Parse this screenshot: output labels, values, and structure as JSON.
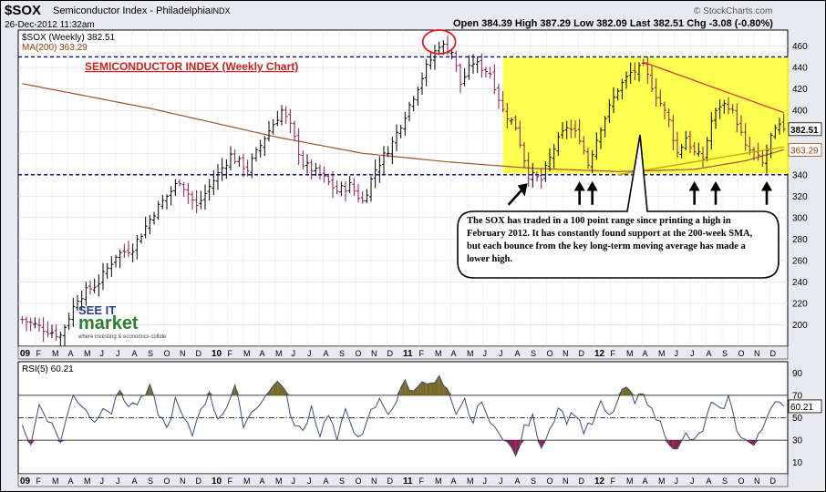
{
  "header": {
    "ticker": "$SOX",
    "index_name": "Semiconductor Index - Philadelphia",
    "exchange": "INDX",
    "datetime": "26-Dec-2012 11:32am",
    "credit": "© StockCharts.com",
    "quote": "Open 384.39   High 387.29   Low 382.09   Last 382.51   Chg -3.08 (-0.80%)"
  },
  "colors": {
    "price_bars": "#000000",
    "price_bars_down": "#8b1a4a",
    "ma_line": "#a0522d",
    "highlight": "#ffff33",
    "support": "#00008b",
    "resistance": "#e03030",
    "rsi_line": "#3b4d7a",
    "rsi_over": "#7a6a2a",
    "rsi_under": "#8b2252"
  },
  "chart_data": [
    {
      "type": "ohlc",
      "legend": {
        "series_label": "$SOX (Weekly) 382.51",
        "ma_label": "MA(200) 363.29"
      },
      "title": "SEMICONDUCTOR INDEX (Weekly Chart)",
      "y_ticks": [
        200,
        220,
        240,
        260,
        280,
        300,
        320,
        340,
        360,
        380,
        400,
        420,
        440,
        460
      ],
      "ylim": [
        180,
        475
      ],
      "x_tick_labels": [
        "09",
        "F",
        "M",
        "A",
        "M",
        "J",
        "J",
        "A",
        "S",
        "O",
        "N",
        "D",
        "10",
        "F",
        "M",
        "A",
        "M",
        "J",
        "J",
        "A",
        "S",
        "O",
        "N",
        "D",
        "11",
        "F",
        "M",
        "A",
        "M",
        "J",
        "J",
        "A",
        "S",
        "O",
        "N",
        "D",
        "12",
        "F",
        "M",
        "A",
        "M",
        "J",
        "J",
        "A",
        "S",
        "O",
        "N",
        "D"
      ],
      "year_labels": [
        "09",
        "10",
        "11",
        "12"
      ],
      "close_anchors": [
        {
          "w": 0,
          "v": 205
        },
        {
          "w": 4,
          "v": 198
        },
        {
          "w": 9,
          "v": 190
        },
        {
          "w": 13,
          "v": 225
        },
        {
          "w": 18,
          "v": 240
        },
        {
          "w": 22,
          "v": 265
        },
        {
          "w": 26,
          "v": 272
        },
        {
          "w": 31,
          "v": 305
        },
        {
          "w": 37,
          "v": 335
        },
        {
          "w": 41,
          "v": 310
        },
        {
          "w": 45,
          "v": 335
        },
        {
          "w": 49,
          "v": 358
        },
        {
          "w": 53,
          "v": 345
        },
        {
          "w": 57,
          "v": 375
        },
        {
          "w": 61,
          "v": 400
        },
        {
          "w": 63,
          "v": 385
        },
        {
          "w": 66,
          "v": 350
        },
        {
          "w": 70,
          "v": 340
        },
        {
          "w": 74,
          "v": 325
        },
        {
          "w": 77,
          "v": 330
        },
        {
          "w": 80,
          "v": 315
        },
        {
          "w": 83,
          "v": 345
        },
        {
          "w": 87,
          "v": 370
        },
        {
          "w": 91,
          "v": 405
        },
        {
          "w": 95,
          "v": 440
        },
        {
          "w": 98,
          "v": 462
        },
        {
          "w": 101,
          "v": 455
        },
        {
          "w": 103,
          "v": 425
        },
        {
          "w": 106,
          "v": 445
        },
        {
          "w": 108,
          "v": 440
        },
        {
          "w": 110,
          "v": 435
        },
        {
          "w": 113,
          "v": 400
        },
        {
          "w": 116,
          "v": 385
        },
        {
          "w": 119,
          "v": 340
        },
        {
          "w": 122,
          "v": 335
        },
        {
          "w": 125,
          "v": 365
        },
        {
          "w": 128,
          "v": 385
        },
        {
          "w": 131,
          "v": 375
        },
        {
          "w": 133,
          "v": 350
        },
        {
          "w": 136,
          "v": 385
        },
        {
          "w": 140,
          "v": 420
        },
        {
          "w": 143,
          "v": 435
        },
        {
          "w": 146,
          "v": 440
        },
        {
          "w": 149,
          "v": 415
        },
        {
          "w": 152,
          "v": 390
        },
        {
          "w": 154,
          "v": 360
        },
        {
          "w": 156,
          "v": 375
        },
        {
          "w": 158,
          "v": 360
        },
        {
          "w": 160,
          "v": 355
        },
        {
          "w": 162,
          "v": 390
        },
        {
          "w": 164,
          "v": 405
        },
        {
          "w": 166,
          "v": 405
        },
        {
          "w": 168,
          "v": 390
        },
        {
          "w": 170,
          "v": 365
        },
        {
          "w": 172,
          "v": 360
        },
        {
          "w": 174,
          "v": 350
        },
        {
          "w": 176,
          "v": 375
        },
        {
          "w": 178,
          "v": 385
        },
        {
          "w": 179,
          "v": 382.51
        }
      ],
      "ma200_anchors": [
        {
          "w": 0,
          "v": 425
        },
        {
          "w": 30,
          "v": 402
        },
        {
          "w": 60,
          "v": 375
        },
        {
          "w": 80,
          "v": 360
        },
        {
          "w": 100,
          "v": 352
        },
        {
          "w": 120,
          "v": 346
        },
        {
          "w": 140,
          "v": 343
        },
        {
          "w": 158,
          "v": 345
        },
        {
          "w": 170,
          "v": 353
        },
        {
          "w": 179,
          "v": 363.29
        }
      ],
      "right_labels": {
        "last": "382.51",
        "ma": "363.29"
      },
      "support_level": 340,
      "resistance_level": 450,
      "highlight_range": {
        "w_start": 113,
        "w_end": 179,
        "y_low": 341,
        "y_high": 450
      },
      "downtrend_line": [
        {
          "w": 146,
          "v": 445
        },
        {
          "w": 179,
          "v": 398
        }
      ],
      "uptrend_line": [
        {
          "w": 140,
          "v": 340
        },
        {
          "w": 179,
          "v": 366
        }
      ],
      "arrows_w": [
        119,
        131,
        134,
        158,
        163,
        175
      ],
      "circled_peak_w": 98,
      "annotation": "The SOX has traded in a 100 point range since printing a high in February 2012. It has constantly found support at the 200-week SMA, but each bounce from the key long-term moving average has made a lower high.",
      "watermark": {
        "line1": "SEE IT",
        "line2": "market",
        "line3": "where investing & economics collide"
      }
    },
    {
      "type": "line",
      "label": "RSI(5) 60.21",
      "y_ticks": [
        10,
        30,
        50,
        70,
        90
      ],
      "ylim": [
        0,
        100
      ],
      "ref_levels": [
        30,
        50,
        70
      ],
      "last_value": "60.21",
      "anchors": [
        {
          "w": 0,
          "v": 45
        },
        {
          "w": 2,
          "v": 25
        },
        {
          "w": 4,
          "v": 62
        },
        {
          "w": 6,
          "v": 50
        },
        {
          "w": 9,
          "v": 30
        },
        {
          "w": 12,
          "v": 70
        },
        {
          "w": 15,
          "v": 58
        },
        {
          "w": 17,
          "v": 45
        },
        {
          "w": 19,
          "v": 62
        },
        {
          "w": 21,
          "v": 55
        },
        {
          "w": 23,
          "v": 75
        },
        {
          "w": 25,
          "v": 60
        },
        {
          "w": 28,
          "v": 65
        },
        {
          "w": 30,
          "v": 76
        },
        {
          "w": 32,
          "v": 55
        },
        {
          "w": 34,
          "v": 40
        },
        {
          "w": 36,
          "v": 65
        },
        {
          "w": 38,
          "v": 48
        },
        {
          "w": 40,
          "v": 35
        },
        {
          "w": 42,
          "v": 60
        },
        {
          "w": 44,
          "v": 70
        },
        {
          "w": 46,
          "v": 50
        },
        {
          "w": 48,
          "v": 60
        },
        {
          "w": 50,
          "v": 76
        },
        {
          "w": 52,
          "v": 45
        },
        {
          "w": 54,
          "v": 55
        },
        {
          "w": 56,
          "v": 65
        },
        {
          "w": 58,
          "v": 72
        },
        {
          "w": 60,
          "v": 85
        },
        {
          "w": 62,
          "v": 70
        },
        {
          "w": 64,
          "v": 42
        },
        {
          "w": 66,
          "v": 38
        },
        {
          "w": 68,
          "v": 60
        },
        {
          "w": 70,
          "v": 35
        },
        {
          "w": 72,
          "v": 55
        },
        {
          "w": 74,
          "v": 30
        },
        {
          "w": 76,
          "v": 55
        },
        {
          "w": 78,
          "v": 40
        },
        {
          "w": 80,
          "v": 32
        },
        {
          "w": 82,
          "v": 55
        },
        {
          "w": 84,
          "v": 65
        },
        {
          "w": 86,
          "v": 55
        },
        {
          "w": 88,
          "v": 65
        },
        {
          "w": 90,
          "v": 83
        },
        {
          "w": 92,
          "v": 72
        },
        {
          "w": 94,
          "v": 86
        },
        {
          "w": 96,
          "v": 78
        },
        {
          "w": 98,
          "v": 85
        },
        {
          "w": 100,
          "v": 72
        },
        {
          "w": 102,
          "v": 50
        },
        {
          "w": 104,
          "v": 65
        },
        {
          "w": 106,
          "v": 45
        },
        {
          "w": 108,
          "v": 68
        },
        {
          "w": 110,
          "v": 42
        },
        {
          "w": 112,
          "v": 40
        },
        {
          "w": 114,
          "v": 28
        },
        {
          "w": 116,
          "v": 15
        },
        {
          "w": 118,
          "v": 40
        },
        {
          "w": 120,
          "v": 50
        },
        {
          "w": 122,
          "v": 25
        },
        {
          "w": 124,
          "v": 40
        },
        {
          "w": 126,
          "v": 60
        },
        {
          "w": 128,
          "v": 48
        },
        {
          "w": 130,
          "v": 55
        },
        {
          "w": 132,
          "v": 38
        },
        {
          "w": 134,
          "v": 45
        },
        {
          "w": 136,
          "v": 62
        },
        {
          "w": 138,
          "v": 50
        },
        {
          "w": 140,
          "v": 65
        },
        {
          "w": 142,
          "v": 78
        },
        {
          "w": 144,
          "v": 62
        },
        {
          "w": 146,
          "v": 75
        },
        {
          "w": 148,
          "v": 55
        },
        {
          "w": 150,
          "v": 45
        },
        {
          "w": 152,
          "v": 30
        },
        {
          "w": 154,
          "v": 20
        },
        {
          "w": 156,
          "v": 35
        },
        {
          "w": 158,
          "v": 28
        },
        {
          "w": 160,
          "v": 40
        },
        {
          "w": 162,
          "v": 62
        },
        {
          "w": 164,
          "v": 55
        },
        {
          "w": 166,
          "v": 68
        },
        {
          "w": 168,
          "v": 40
        },
        {
          "w": 170,
          "v": 30
        },
        {
          "w": 172,
          "v": 25
        },
        {
          "w": 174,
          "v": 40
        },
        {
          "w": 176,
          "v": 62
        },
        {
          "w": 178,
          "v": 68
        },
        {
          "w": 179,
          "v": 60.21
        }
      ]
    }
  ]
}
